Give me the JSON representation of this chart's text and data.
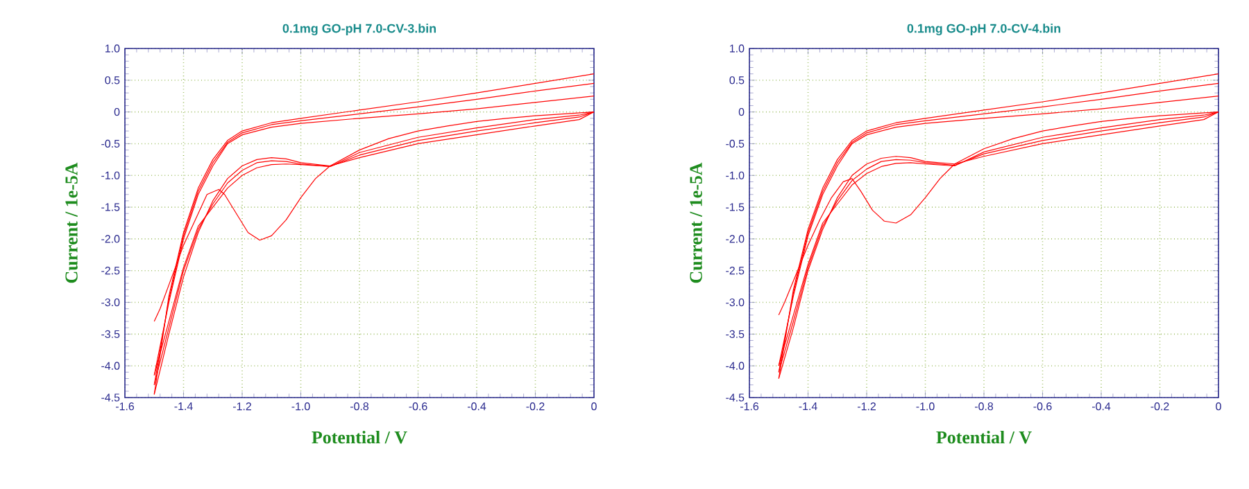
{
  "chart_data": [
    {
      "type": "line",
      "title": "0.1mg GO-pH 7.0-CV-3.bin",
      "xlabel": "Potential / V",
      "ylabel": "Current / 1e-5A",
      "xlim": [
        -1.6,
        0
      ],
      "ylim": [
        -4.5,
        1.0
      ],
      "xticks": [
        -1.6,
        -1.4,
        -1.2,
        {
          "value": -1.0,
          "label": "-1.0"
        },
        -0.8,
        -0.6,
        -0.4,
        -0.2,
        0
      ],
      "yticks": [
        -4.5,
        {
          "value": -4.0,
          "label": "-4.0"
        },
        -3.5,
        {
          "value": -3.0,
          "label": "-3.0"
        },
        -2.5,
        {
          "value": -2.0,
          "label": "-2.0"
        },
        -1.5,
        {
          "value": -1.0,
          "label": "-1.0"
        },
        -0.5,
        0,
        0.5,
        {
          "value": 1.0,
          "label": "1.0"
        }
      ],
      "grid": true,
      "series": [
        {
          "color": "#ff0000",
          "x": [
            0,
            -0.1,
            -0.2,
            -0.3,
            -0.4,
            -0.5,
            -0.6,
            -0.7,
            -0.8,
            -0.9,
            -0.95,
            -1.0,
            -1.05,
            -1.1,
            -1.14,
            -1.18,
            -1.22,
            -1.26,
            -1.28,
            -1.32,
            -1.36,
            -1.4,
            -1.44,
            -1.48,
            -1.5
          ],
          "values": [
            0,
            -0.03,
            -0.06,
            -0.1,
            -0.15,
            -0.22,
            -0.3,
            -0.42,
            -0.6,
            -0.85,
            -1.05,
            -1.35,
            -1.7,
            -1.95,
            -2.02,
            -1.9,
            -1.6,
            -1.3,
            -1.22,
            -1.3,
            -1.7,
            -2.1,
            -2.6,
            -3.1,
            -3.3
          ]
        },
        {
          "color": "#ff0000",
          "x": [
            0,
            -0.2,
            -0.4,
            -0.6,
            -0.8,
            -1.0,
            -1.1,
            -1.2,
            -1.25,
            -1.3,
            -1.35,
            -1.4,
            -1.45,
            -1.5
          ],
          "values": [
            0.6,
            0.45,
            0.3,
            0.16,
            0.03,
            -0.1,
            -0.17,
            -0.3,
            -0.45,
            -0.75,
            -1.2,
            -1.9,
            -2.9,
            -4.45
          ]
        },
        {
          "color": "#ff0000",
          "x": [
            -1.5,
            -1.45,
            -1.4,
            -1.35,
            -1.3,
            -1.25,
            -1.2,
            -1.15,
            -1.1,
            -1.05,
            -1.0,
            -0.9,
            -0.8,
            -0.6,
            -0.4,
            -0.2,
            -0.05,
            0
          ],
          "values": [
            -4.45,
            -3.5,
            -2.6,
            -1.9,
            -1.4,
            -1.05,
            -0.85,
            -0.75,
            -0.72,
            -0.74,
            -0.8,
            -0.85,
            -0.72,
            -0.5,
            -0.36,
            -0.22,
            -0.12,
            0
          ]
        },
        {
          "color": "#ff0000",
          "x": [
            0,
            -0.2,
            -0.4,
            -0.6,
            -0.8,
            -1.0,
            -1.1,
            -1.2,
            -1.25,
            -1.3,
            -1.35,
            -1.4,
            -1.45,
            -1.5
          ],
          "values": [
            0.45,
            0.33,
            0.2,
            0.08,
            -0.03,
            -0.14,
            -0.2,
            -0.33,
            -0.48,
            -0.8,
            -1.25,
            -1.95,
            -2.95,
            -4.3
          ]
        },
        {
          "color": "#ff0000",
          "x": [
            -1.5,
            -1.45,
            -1.4,
            -1.35,
            -1.3,
            -1.25,
            -1.2,
            -1.15,
            -1.1,
            -1.05,
            -1.0,
            -0.9,
            -0.8,
            -0.6,
            -0.4,
            -0.2,
            -0.05,
            0
          ],
          "values": [
            -4.3,
            -3.4,
            -2.5,
            -1.85,
            -1.45,
            -1.12,
            -0.92,
            -0.8,
            -0.77,
            -0.78,
            -0.82,
            -0.86,
            -0.68,
            -0.45,
            -0.3,
            -0.17,
            -0.08,
            0
          ]
        },
        {
          "color": "#ff0000",
          "x": [
            0,
            -0.2,
            -0.4,
            -0.6,
            -0.8,
            -1.0,
            -1.1,
            -1.2,
            -1.25,
            -1.3,
            -1.35,
            -1.4,
            -1.45,
            -1.5
          ],
          "values": [
            0.25,
            0.15,
            0.05,
            -0.03,
            -0.1,
            -0.18,
            -0.24,
            -0.36,
            -0.5,
            -0.85,
            -1.3,
            -2.0,
            -3.0,
            -4.15
          ]
        },
        {
          "color": "#ff0000",
          "x": [
            -1.5,
            -1.45,
            -1.4,
            -1.35,
            -1.3,
            -1.25,
            -1.2,
            -1.15,
            -1.1,
            -1.05,
            -1.0,
            -0.9,
            -0.8,
            -0.6,
            -0.4,
            -0.2,
            -0.05,
            0
          ],
          "values": [
            -4.15,
            -3.3,
            -2.45,
            -1.8,
            -1.5,
            -1.2,
            -1.0,
            -0.88,
            -0.83,
            -0.82,
            -0.83,
            -0.86,
            -0.64,
            -0.4,
            -0.25,
            -0.12,
            -0.05,
            0
          ]
        }
      ]
    },
    {
      "type": "line",
      "title": "0.1mg GO-pH 7.0-CV-4.bin",
      "xlabel": "Potential / V",
      "ylabel": "Current / 1e-5A",
      "xlim": [
        -1.6,
        0
      ],
      "ylim": [
        -4.5,
        1.0
      ],
      "xticks": [
        -1.6,
        -1.4,
        -1.2,
        {
          "value": -1.0,
          "label": "-1.0"
        },
        -0.8,
        -0.6,
        -0.4,
        -0.2,
        0
      ],
      "yticks": [
        -4.5,
        {
          "value": -4.0,
          "label": "-4.0"
        },
        -3.5,
        {
          "value": -3.0,
          "label": "-3.0"
        },
        -2.5,
        {
          "value": -2.0,
          "label": "-2.0"
        },
        -1.5,
        {
          "value": -1.0,
          "label": "-1.0"
        },
        -0.5,
        0,
        0.5,
        {
          "value": 1.0,
          "label": "1.0"
        }
      ],
      "grid": true,
      "series": [
        {
          "color": "#ff0000",
          "x": [
            0,
            -0.1,
            -0.2,
            -0.3,
            -0.4,
            -0.5,
            -0.6,
            -0.7,
            -0.8,
            -0.9,
            -0.95,
            -1.0,
            -1.05,
            -1.1,
            -1.14,
            -1.18,
            -1.22,
            -1.25,
            -1.28,
            -1.32,
            -1.36,
            -1.4,
            -1.44,
            -1.48,
            -1.5
          ],
          "values": [
            0,
            -0.03,
            -0.06,
            -0.1,
            -0.15,
            -0.22,
            -0.3,
            -0.42,
            -0.58,
            -0.82,
            -1.05,
            -1.35,
            -1.62,
            -1.75,
            -1.72,
            -1.55,
            -1.25,
            -1.05,
            -1.1,
            -1.35,
            -1.7,
            -2.1,
            -2.55,
            -3.0,
            -3.2
          ]
        },
        {
          "color": "#ff0000",
          "x": [
            0,
            -0.2,
            -0.4,
            -0.6,
            -0.8,
            -1.0,
            -1.1,
            -1.2,
            -1.25,
            -1.3,
            -1.35,
            -1.4,
            -1.45,
            -1.5
          ],
          "values": [
            0.6,
            0.45,
            0.3,
            0.16,
            0.03,
            -0.1,
            -0.17,
            -0.3,
            -0.45,
            -0.75,
            -1.2,
            -1.85,
            -2.8,
            -4.2
          ]
        },
        {
          "color": "#ff0000",
          "x": [
            -1.5,
            -1.45,
            -1.4,
            -1.35,
            -1.3,
            -1.25,
            -1.2,
            -1.15,
            -1.1,
            -1.05,
            -1.0,
            -0.9,
            -0.8,
            -0.6,
            -0.4,
            -0.2,
            -0.05,
            0
          ],
          "values": [
            -4.2,
            -3.4,
            -2.5,
            -1.85,
            -1.35,
            -1.0,
            -0.82,
            -0.73,
            -0.7,
            -0.72,
            -0.78,
            -0.82,
            -0.7,
            -0.5,
            -0.36,
            -0.22,
            -0.12,
            0
          ]
        },
        {
          "color": "#ff0000",
          "x": [
            0,
            -0.2,
            -0.4,
            -0.6,
            -0.8,
            -1.0,
            -1.1,
            -1.2,
            -1.25,
            -1.3,
            -1.35,
            -1.4,
            -1.45,
            -1.5
          ],
          "values": [
            0.45,
            0.33,
            0.2,
            0.08,
            -0.03,
            -0.14,
            -0.2,
            -0.33,
            -0.48,
            -0.8,
            -1.25,
            -1.9,
            -2.85,
            -4.1
          ]
        },
        {
          "color": "#ff0000",
          "x": [
            -1.5,
            -1.45,
            -1.4,
            -1.35,
            -1.3,
            -1.25,
            -1.2,
            -1.15,
            -1.1,
            -1.05,
            -1.0,
            -0.9,
            -0.8,
            -0.6,
            -0.4,
            -0.2,
            -0.05,
            0
          ],
          "values": [
            -4.1,
            -3.3,
            -2.45,
            -1.8,
            -1.4,
            -1.08,
            -0.9,
            -0.78,
            -0.75,
            -0.76,
            -0.8,
            -0.84,
            -0.66,
            -0.45,
            -0.3,
            -0.17,
            -0.08,
            0
          ]
        },
        {
          "color": "#ff0000",
          "x": [
            0,
            -0.2,
            -0.4,
            -0.6,
            -0.8,
            -1.0,
            -1.1,
            -1.2,
            -1.25,
            -1.3,
            -1.35,
            -1.4,
            -1.45,
            -1.5
          ],
          "values": [
            0.25,
            0.15,
            0.05,
            -0.03,
            -0.1,
            -0.18,
            -0.24,
            -0.36,
            -0.5,
            -0.85,
            -1.3,
            -1.95,
            -2.9,
            -4.0
          ]
        },
        {
          "color": "#ff0000",
          "x": [
            -1.5,
            -1.45,
            -1.4,
            -1.35,
            -1.3,
            -1.25,
            -1.2,
            -1.15,
            -1.1,
            -1.05,
            -1.0,
            -0.9,
            -0.8,
            -0.6,
            -0.4,
            -0.2,
            -0.05,
            0
          ],
          "values": [
            -4.0,
            -3.2,
            -2.4,
            -1.75,
            -1.45,
            -1.15,
            -0.97,
            -0.86,
            -0.81,
            -0.8,
            -0.82,
            -0.85,
            -0.63,
            -0.4,
            -0.25,
            -0.12,
            -0.05,
            0
          ]
        }
      ]
    }
  ]
}
